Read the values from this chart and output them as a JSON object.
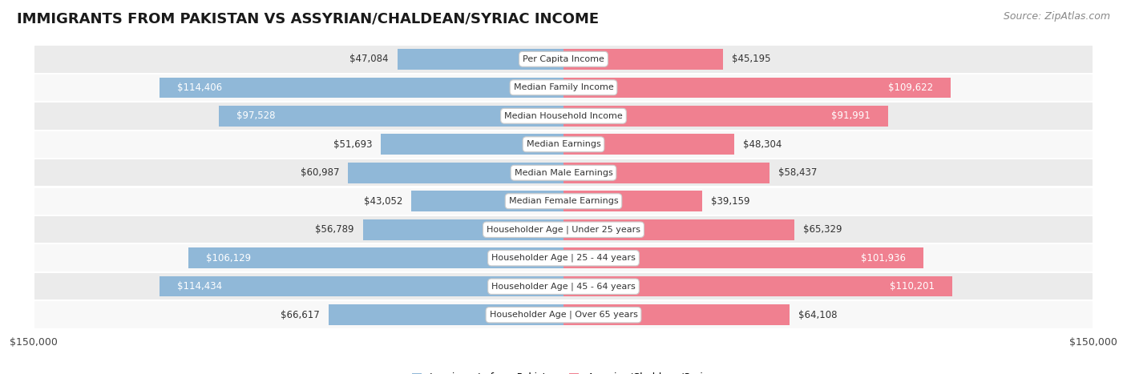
{
  "title": "IMMIGRANTS FROM PAKISTAN VS ASSYRIAN/CHALDEAN/SYRIAC INCOME",
  "source": "Source: ZipAtlas.com",
  "categories": [
    "Per Capita Income",
    "Median Family Income",
    "Median Household Income",
    "Median Earnings",
    "Median Male Earnings",
    "Median Female Earnings",
    "Householder Age | Under 25 years",
    "Householder Age | 25 - 44 years",
    "Householder Age | 45 - 64 years",
    "Householder Age | Over 65 years"
  ],
  "pakistan_values": [
    47084,
    114406,
    97528,
    51693,
    60987,
    43052,
    56789,
    106129,
    114434,
    66617
  ],
  "assyrian_values": [
    45195,
    109622,
    91991,
    48304,
    58437,
    39159,
    65329,
    101936,
    110201,
    64108
  ],
  "pakistan_color": "#90b8d8",
  "assyrian_color": "#f08090",
  "pakistan_label": "Immigrants from Pakistan",
  "assyrian_label": "Assyrian/Chaldean/Syriac",
  "x_max": 150000,
  "row_bg_even": "#ebebeb",
  "row_bg_odd": "#f8f8f8",
  "title_fontsize": 13,
  "source_fontsize": 9,
  "bar_label_fontsize": 8.5,
  "category_fontsize": 8,
  "legend_fontsize": 9,
  "axis_label_fontsize": 9,
  "bar_height": 0.72,
  "white_text_thresh": 80000
}
